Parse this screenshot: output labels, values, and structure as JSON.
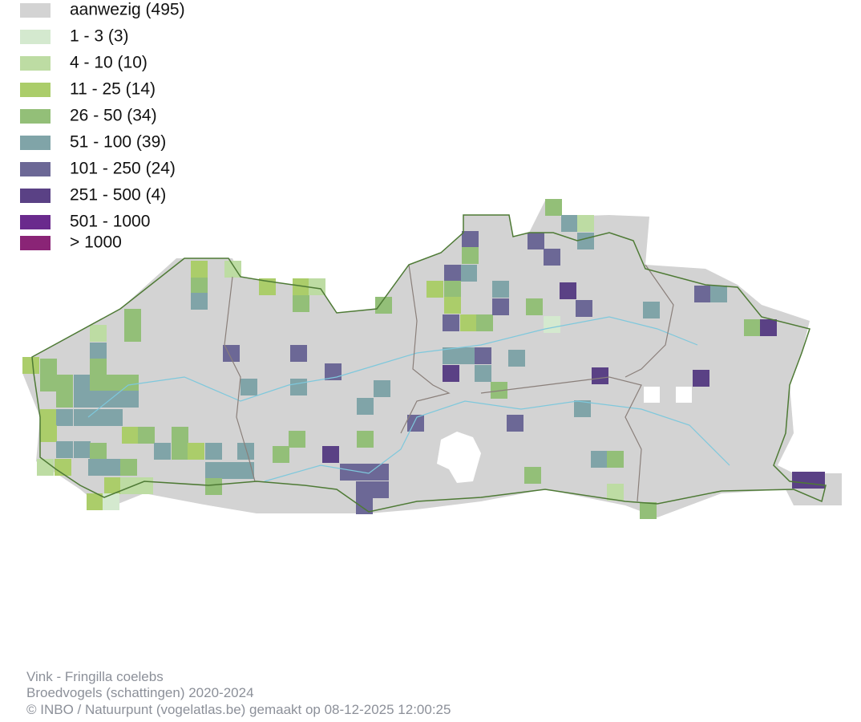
{
  "legend": [
    {
      "label": "aanwezig (495)",
      "color": "#d3d3d3"
    },
    {
      "label": "1 - 3 (3)",
      "color": "#d4e9cf"
    },
    {
      "label": "4 - 10 (10)",
      "color": "#bddca3"
    },
    {
      "label": "11 - 25 (14)",
      "color": "#abcd6a"
    },
    {
      "label": "26 - 50 (34)",
      "color": "#93bf78"
    },
    {
      "label": "51 - 100 (39)",
      "color": "#80a4a8"
    },
    {
      "label": "101 - 250 (24)",
      "color": "#6c6896"
    },
    {
      "label": "251 - 500 (4)",
      "color": "#5a4185"
    },
    {
      "label": "501 - 1000",
      "color": "#6a2a8d"
    },
    {
      "label": "> 1000",
      "color": "#8a2476"
    }
  ],
  "footer": {
    "species": "Vink - Fringilla coelebs",
    "dataset": "Broedvogels (schattingen) 2020-2024",
    "credit": "© INBO / Natuurpunt (vogelatlas.be) gemaakt op 08-12-2025 12:00:25"
  }
}
